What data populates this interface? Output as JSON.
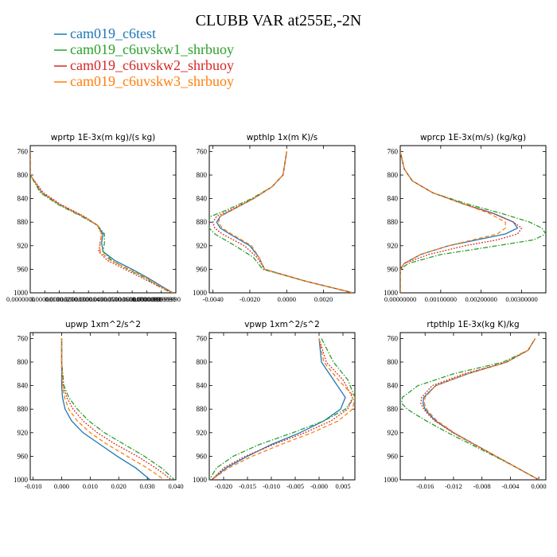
{
  "figure_title": "CLUBB VAR at255E,-2N",
  "legend": [
    {
      "name": "cam019_c6test",
      "color": "#1f77b4",
      "dash": "solid"
    },
    {
      "name": "cam019_c6uvskw1_shrbuoy",
      "color": "#2ca02c",
      "dash": "dashdot"
    },
    {
      "name": "cam019_c6uvskw2_shrbuoy",
      "color": "#d62728",
      "dash": "dotted"
    },
    {
      "name": "cam019_c6uvskw3_shrbuoy",
      "color": "#ff7f0e",
      "dash": "dashed"
    }
  ],
  "chart_data": [
    {
      "type": "line",
      "title": "wprtp  1E-3x(m kg)/(s kg)",
      "xlim": [
        0.0,
        9.999999e-06
      ],
      "ylim": [
        1000,
        750
      ],
      "yticks": [
        760,
        800,
        840,
        880,
        920,
        960,
        1000
      ],
      "xtick_labels": [
        "0.0000000",
        "0.0000010",
        "0.0000020",
        "0.0000030",
        "0.0000040",
        "0.0000050",
        "0.0000060",
        "0.0000070",
        "0.0000080",
        "0.0000090",
        "0.0000099999990"
      ],
      "y": [
        760,
        800,
        830,
        850,
        870,
        885,
        900,
        915,
        930,
        945,
        960,
        975,
        990,
        1000
      ],
      "series": [
        {
          "name": "cam019_c6test",
          "values": [
            0.0,
            0.0,
            8e-07,
            2e-06,
            3.6e-06,
            4.6e-06,
            5e-06,
            4.9e-06,
            5e-06,
            5.8e-06,
            7e-06,
            8.1e-06,
            9.1e-06,
            9.8e-06
          ]
        },
        {
          "name": "cam019_c6uvskw1_shrbuoy",
          "values": [
            0.0,
            0.0,
            7e-07,
            1.9e-06,
            3.5e-06,
            4.6e-06,
            5.1e-06,
            5.1e-06,
            5e-06,
            5.6e-06,
            6.7e-06,
            7.9e-06,
            8.9e-06,
            9.7e-06
          ]
        },
        {
          "name": "cam019_c6uvskw2_shrbuoy",
          "values": [
            0.0,
            0.0,
            9e-07,
            2.1e-06,
            3.7e-06,
            4.6e-06,
            4.9e-06,
            4.8e-06,
            4.7e-06,
            5.3e-06,
            6.5e-06,
            7.7e-06,
            8.9e-06,
            9.8e-06
          ]
        },
        {
          "name": "cam019_c6uvskw3_shrbuoy",
          "values": [
            0.0,
            0.0,
            8e-07,
            2e-06,
            3.6e-06,
            4.6e-06,
            4.9e-06,
            4.8e-06,
            4.8e-06,
            5.5e-06,
            6.8e-06,
            8e-06,
            9e-06,
            9.8e-06
          ]
        }
      ]
    },
    {
      "type": "line",
      "title": "wpthlp  1x(m K)/s",
      "xlim": [
        -0.0042,
        0.0037
      ],
      "ylim": [
        1000,
        750
      ],
      "yticks": [
        760,
        800,
        840,
        880,
        920,
        960,
        1000
      ],
      "xticks": [
        -0.004,
        -0.002,
        0.0,
        0.002
      ],
      "xtick_labels": [
        "-0.0040",
        "-0.0020",
        "0.0000",
        "0.0020"
      ],
      "y": [
        760,
        800,
        820,
        840,
        860,
        870,
        880,
        890,
        900,
        920,
        940,
        960,
        980,
        1000
      ],
      "series": [
        {
          "name": "cam019_c6test",
          "values": [
            0.0,
            -0.0002,
            -0.0008,
            -0.0018,
            -0.003,
            -0.0036,
            -0.0038,
            -0.0036,
            -0.0031,
            -0.002,
            -0.0015,
            -0.0012,
            0.001,
            0.0036
          ]
        },
        {
          "name": "cam019_c6uvskw1_shrbuoy",
          "values": [
            0.0,
            -0.0002,
            -0.0008,
            -0.0019,
            -0.0033,
            -0.0041,
            -0.0043,
            -0.0042,
            -0.0039,
            -0.0028,
            -0.0018,
            -0.0013,
            0.001,
            0.0036
          ]
        },
        {
          "name": "cam019_c6uvskw2_shrbuoy",
          "values": [
            0.0,
            -0.0002,
            -0.0008,
            -0.0018,
            -0.0031,
            -0.0038,
            -0.004,
            -0.0039,
            -0.0035,
            -0.0023,
            -0.0016,
            -0.0012,
            0.001,
            0.0036
          ]
        },
        {
          "name": "cam019_c6uvskw3_shrbuoy",
          "values": [
            0.0,
            -0.0002,
            -0.0008,
            -0.0018,
            -0.003,
            -0.0036,
            -0.0037,
            -0.0035,
            -0.003,
            -0.0019,
            -0.0015,
            -0.0012,
            0.001,
            0.0036
          ]
        }
      ]
    },
    {
      "type": "line",
      "title": "wprcp  1E-3x(m/s) (kg/kg)",
      "xlim": [
        0.0,
        0.0036
      ],
      "ylim": [
        1000,
        750
      ],
      "yticks": [
        760,
        800,
        840,
        880,
        920,
        960,
        1000
      ],
      "xticks": [
        0.0,
        0.001,
        0.002,
        0.003
      ],
      "xtick_labels": [
        "0.00000000",
        "0.00100000",
        "0.00200000",
        "0.00300000"
      ],
      "y": [
        760,
        790,
        810,
        830,
        850,
        865,
        880,
        890,
        900,
        910,
        920,
        935,
        950,
        960,
        1000
      ],
      "series": [
        {
          "name": "cam019_c6test",
          "values": [
            0.0,
            0.0001,
            0.0003,
            0.0008,
            0.0016,
            0.0023,
            0.0028,
            0.0029,
            0.0026,
            0.0019,
            0.0012,
            0.0005,
            0.0001,
            0.0,
            0.0
          ]
        },
        {
          "name": "cam019_c6uvskw1_shrbuoy",
          "values": [
            0.0,
            0.0001,
            0.0003,
            0.0008,
            0.0017,
            0.0025,
            0.0032,
            0.0035,
            0.0036,
            0.0033,
            0.0024,
            0.001,
            0.0002,
            0.0,
            0.0
          ]
        },
        {
          "name": "cam019_c6uvskw2_shrbuoy",
          "values": [
            0.0,
            0.0001,
            0.0003,
            0.0008,
            0.0016,
            0.0023,
            0.0028,
            0.003,
            0.0029,
            0.0024,
            0.0016,
            0.0007,
            0.0001,
            0.0,
            0.0
          ]
        },
        {
          "name": "cam019_c6uvskw3_shrbuoy",
          "values": [
            0.0,
            0.0001,
            0.0003,
            0.0008,
            0.0016,
            0.0022,
            0.0026,
            0.0026,
            0.0024,
            0.0018,
            0.0012,
            0.0005,
            0.0001,
            0.0,
            0.0
          ]
        }
      ]
    },
    {
      "type": "line",
      "title": "upwp  1xm^2/s^2",
      "xlim": [
        -0.011,
        0.04
      ],
      "ylim": [
        1000,
        750
      ],
      "yticks": [
        760,
        800,
        840,
        880,
        920,
        960,
        1000
      ],
      "xticks": [
        -0.01,
        0.0,
        0.01,
        0.02,
        0.03,
        0.04
      ],
      "xtick_labels": [
        "-0.010",
        "0.000",
        "0.010",
        "0.020",
        "0.030",
        "0.040"
      ],
      "y": [
        760,
        800,
        840,
        860,
        880,
        900,
        920,
        940,
        960,
        980,
        1000
      ],
      "series": [
        {
          "name": "cam019_c6test",
          "values": [
            0.0,
            0.0,
            0.0,
            0.0003,
            0.0012,
            0.0035,
            0.0075,
            0.0135,
            0.0195,
            0.026,
            0.031
          ]
        },
        {
          "name": "cam019_c6uvskw1_shrbuoy",
          "values": [
            0.0,
            0.0,
            0.0008,
            0.0025,
            0.0055,
            0.0095,
            0.015,
            0.022,
            0.029,
            0.035,
            0.0395
          ]
        },
        {
          "name": "cam019_c6uvskw2_shrbuoy",
          "values": [
            0.0,
            0.0,
            0.0005,
            0.0018,
            0.004,
            0.0075,
            0.0125,
            0.019,
            0.0265,
            0.033,
            0.0385
          ]
        },
        {
          "name": "cam019_c6uvskw3_shrbuoy",
          "values": [
            0.0,
            0.0,
            0.0003,
            0.001,
            0.0025,
            0.0055,
            0.01,
            0.016,
            0.023,
            0.03,
            0.036
          ]
        }
      ]
    },
    {
      "type": "line",
      "title": "vpwp  1xm^2/s^2",
      "xlim": [
        -0.023,
        0.0075
      ],
      "ylim": [
        1000,
        750
      ],
      "yticks": [
        760,
        800,
        840,
        880,
        920,
        960,
        1000
      ],
      "xticks": [
        -0.02,
        -0.015,
        -0.01,
        -0.005,
        0.0,
        0.005
      ],
      "xtick_labels": [
        "-0.020",
        "-0.015",
        "-0.010",
        "-0.005",
        "-0.000",
        "0.005"
      ],
      "y": [
        760,
        800,
        830,
        860,
        880,
        900,
        920,
        940,
        960,
        980,
        1000
      ],
      "series": [
        {
          "name": "cam019_c6test",
          "values": [
            0.0,
            0.0005,
            0.003,
            0.0055,
            0.0045,
            0.001,
            -0.004,
            -0.01,
            -0.015,
            -0.0195,
            -0.0225
          ]
        },
        {
          "name": "cam019_c6uvskw1_shrbuoy",
          "values": [
            0.0005,
            0.003,
            0.006,
            0.0075,
            0.0055,
            0.001,
            -0.0055,
            -0.0125,
            -0.018,
            -0.0215,
            -0.023
          ]
        },
        {
          "name": "cam019_c6uvskw2_shrbuoy",
          "values": [
            0.0,
            0.0015,
            0.005,
            0.007,
            0.006,
            0.0025,
            -0.003,
            -0.0095,
            -0.0155,
            -0.02,
            -0.0225
          ]
        },
        {
          "name": "cam019_c6uvskw3_shrbuoy",
          "values": [
            0.0,
            0.001,
            0.004,
            0.0075,
            0.007,
            0.004,
            -0.0015,
            -0.008,
            -0.014,
            -0.019,
            -0.0225
          ]
        }
      ]
    },
    {
      "type": "line",
      "title": "rtpthlp  1E-3x(kg K)/kg",
      "xlim": [
        -0.0195,
        0.001
      ],
      "ylim": [
        1000,
        750
      ],
      "yticks": [
        760,
        800,
        840,
        880,
        920,
        960,
        1000
      ],
      "xticks": [
        -0.016,
        -0.012,
        -0.008,
        -0.004,
        0.0
      ],
      "xtick_labels": [
        "-0.016",
        "-0.012",
        "-0.008",
        "-0.004",
        "0.000"
      ],
      "y": [
        760,
        780,
        800,
        820,
        840,
        860,
        870,
        880,
        890,
        900,
        920,
        940,
        960,
        980,
        1000
      ],
      "series": [
        {
          "name": "cam019_c6test",
          "values": [
            -0.0005,
            -0.0015,
            -0.0045,
            -0.01,
            -0.0145,
            -0.0162,
            -0.0163,
            -0.016,
            -0.0153,
            -0.0145,
            -0.012,
            -0.009,
            -0.006,
            -0.003,
            0.0
          ]
        },
        {
          "name": "cam019_c6uvskw1_shrbuoy",
          "values": [
            -0.0005,
            -0.0015,
            -0.005,
            -0.012,
            -0.017,
            -0.0192,
            -0.0193,
            -0.0185,
            -0.0172,
            -0.0158,
            -0.0128,
            -0.0095,
            -0.0062,
            -0.003,
            0.0
          ]
        },
        {
          "name": "cam019_c6uvskw2_shrbuoy",
          "values": [
            -0.0005,
            -0.0015,
            -0.0045,
            -0.0105,
            -0.015,
            -0.0165,
            -0.0166,
            -0.0162,
            -0.0155,
            -0.0146,
            -0.0121,
            -0.0091,
            -0.006,
            -0.003,
            0.0
          ]
        },
        {
          "name": "cam019_c6uvskw3_shrbuoy",
          "values": [
            -0.0005,
            -0.0015,
            -0.0045,
            -0.01,
            -0.0145,
            -0.016,
            -0.0161,
            -0.0158,
            -0.0151,
            -0.0143,
            -0.0119,
            -0.009,
            -0.006,
            -0.003,
            0.0
          ]
        }
      ]
    }
  ]
}
